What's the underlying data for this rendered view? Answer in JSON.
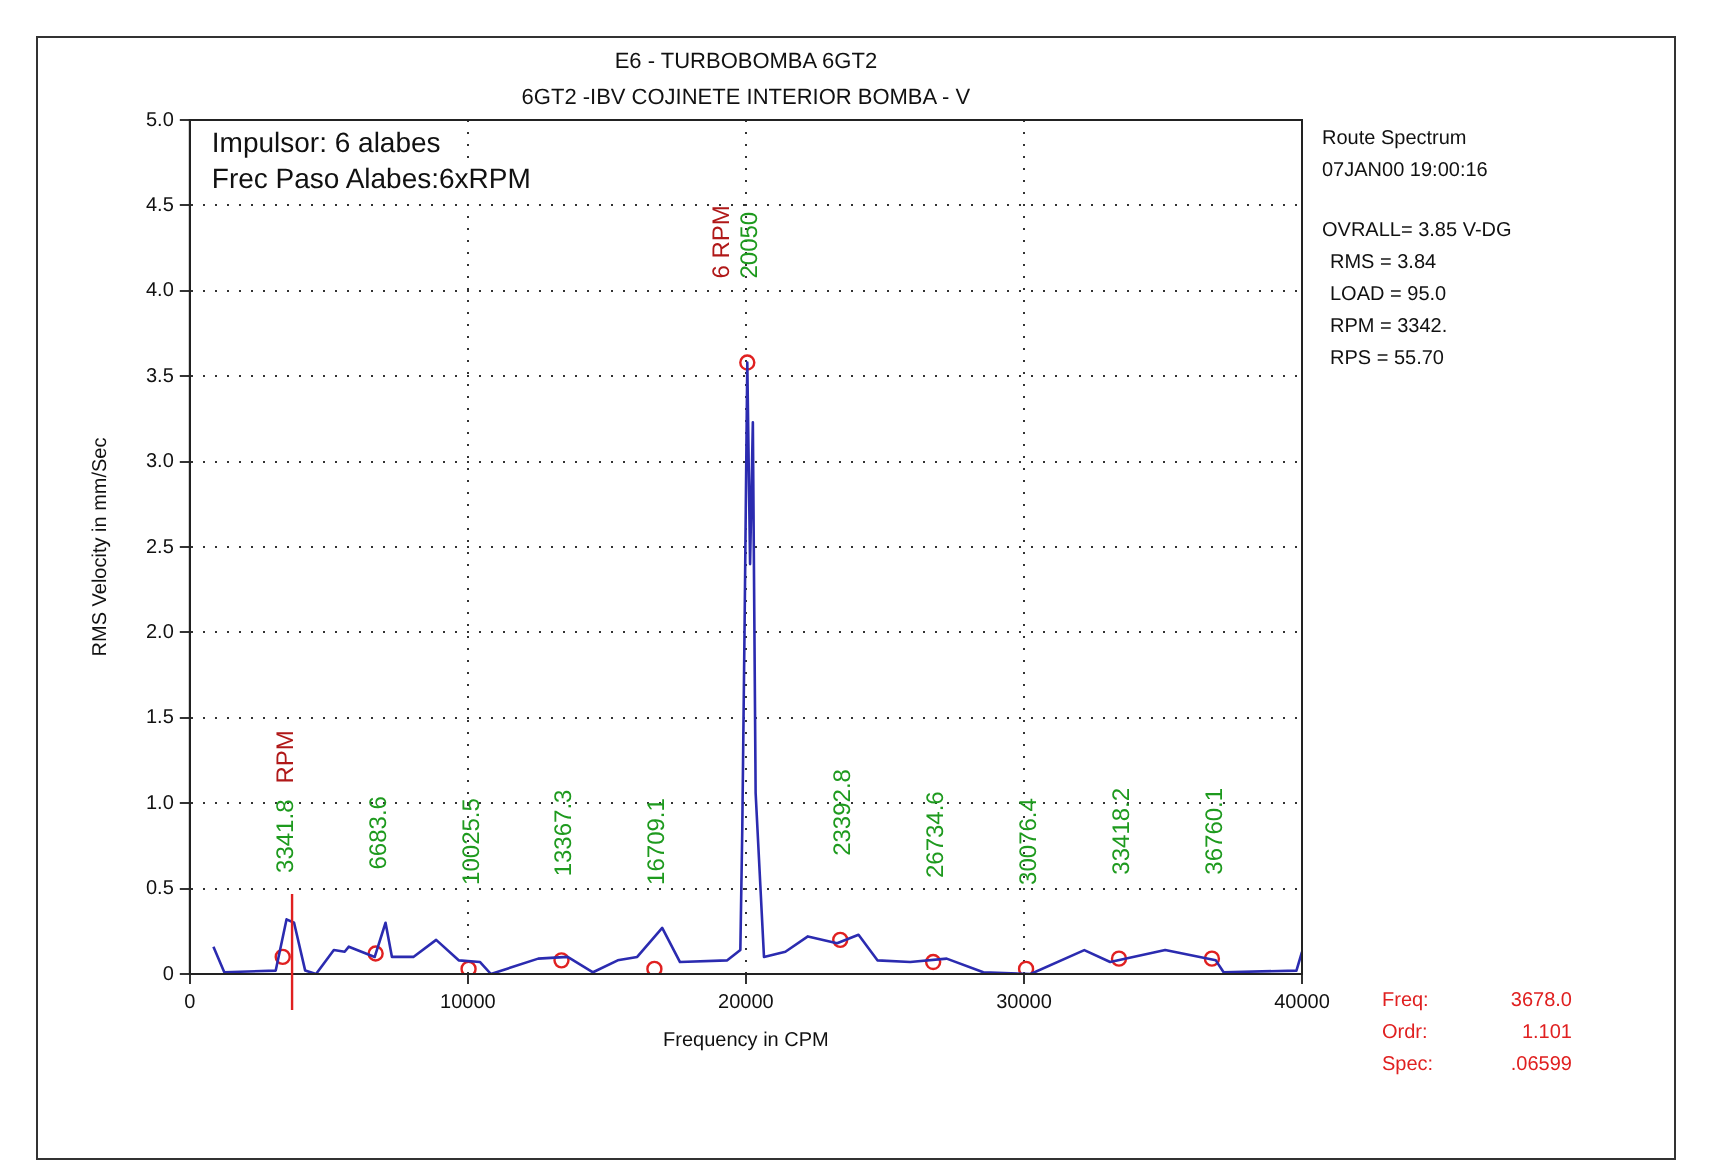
{
  "chart_data": {
    "type": "line",
    "title": "E6 - TURBOBOMBA 6GT2",
    "subtitle": "6GT2 -IBV COJINETE INTERIOR BOMBA - V",
    "xlabel": "Frequency in CPM",
    "ylabel": "RMS Velocity in mm/Sec",
    "x": [
      850,
      1240,
      3090,
      3480,
      3750,
      4150,
      4540,
      5180,
      5570,
      5720,
      6650,
      7040,
      7270,
      8040,
      8860,
      9670,
      10440,
      10830,
      12530,
      13590,
      14500,
      15390,
      16090,
      16990,
      17630,
      19330,
      19800,
      19870,
      19950,
      20050,
      20150,
      20250,
      20350,
      20650,
      21420,
      22230,
      23280,
      24050,
      24730,
      25910,
      27220,
      28540,
      30240,
      32170,
      33100,
      35080,
      36900,
      37180,
      39800,
      40000
    ],
    "series": [
      {
        "color": "#2b2bb0",
        "values": [
          0.16,
          0.01,
          0.02,
          0.32,
          0.3,
          0.02,
          0,
          0.14,
          0.13,
          0.16,
          0.1,
          0.3,
          0.1,
          0.1,
          0.2,
          0.08,
          0.07,
          0,
          0.09,
          0.1,
          0.01,
          0.08,
          0.1,
          0.27,
          0.07,
          0.08,
          0.14,
          0.85,
          2.0,
          3.58,
          2.4,
          3.23,
          1.06,
          0.1,
          0.13,
          0.22,
          0.18,
          0.23,
          0.08,
          0.07,
          0.09,
          0.01,
          0,
          0.14,
          0.07,
          0.14,
          0.08,
          0.01,
          0.02,
          0.13
        ]
      },
      {
        "type": "scatter",
        "color": "#e02020",
        "x": [
          3341.8,
          6683.6,
          10025.5,
          13367.3,
          16709.1,
          20050,
          23392.8,
          26734.6,
          30076.4,
          33418.2,
          36760.1
        ],
        "values": [
          0.1,
          0.12,
          0.03,
          0.08,
          0.03,
          3.58,
          0.2,
          0.07,
          0.03,
          0.09,
          0.09
        ]
      }
    ],
    "xlim": [
      0,
      40000
    ],
    "xticks": [
      0,
      10000,
      20000,
      30000,
      40000
    ],
    "ylim": [
      0,
      5
    ],
    "yticks": [
      0,
      0.5,
      {
        "value": 1,
        "label": "1.0"
      },
      1.5,
      {
        "value": 2,
        "label": "2.0"
      },
      2.5,
      {
        "value": 3,
        "label": "3.0"
      },
      3.5,
      {
        "value": 4,
        "label": "4.0"
      },
      4.5,
      {
        "value": 5,
        "label": "5.0"
      }
    ],
    "grid": true,
    "legend": false,
    "line_style": "solid",
    "ref_lines": [
      {
        "axis": "x",
        "value": 3678,
        "color": "#e02020"
      }
    ],
    "annotations": [
      "Impulsor: 6 alabes",
      "Frec Paso Alabes:6xRPM",
      "Route Spectrum",
      "07JAN00 19:00:16",
      "OVRALL= 3.85 V-DG",
      "RMS = 3.84",
      "LOAD = 95.0",
      "RPM = 3342.",
      "RPS = 55.70",
      "Freq: 3678.0",
      "Ordr: 1.101",
      "Spec: .06599",
      "3341.8",
      "6683.6",
      "10025.5",
      "13367.3",
      "16709.1",
      "20050",
      "23392.8",
      "26734.6",
      "30076.4",
      "33418.2",
      "36760.1",
      "RPM",
      "6 RPM"
    ]
  }
}
